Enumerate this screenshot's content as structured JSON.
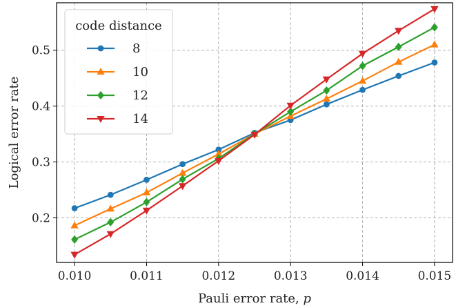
{
  "chart_data": {
    "type": "line",
    "xlabel": "Pauli error rate, ",
    "xlabel_var": "p",
    "ylabel": "Logical error rate",
    "xlim": [
      0.00975,
      0.01525
    ],
    "ylim": [
      0.12,
      0.585
    ],
    "xticks": [
      0.01,
      0.011,
      0.012,
      0.013,
      0.014,
      0.015
    ],
    "xtick_labels": [
      "0.010",
      "0.011",
      "0.012",
      "0.013",
      "0.014",
      "0.015"
    ],
    "yticks": [
      0.2,
      0.3,
      0.4,
      0.5
    ],
    "ytick_labels": [
      "0.2",
      "0.3",
      "0.4",
      "0.5"
    ],
    "grid": true,
    "legend": {
      "title": "code distance",
      "placement": "top-left"
    },
    "x": [
      0.01,
      0.0105,
      0.011,
      0.0115,
      0.012,
      0.0125,
      0.013,
      0.0135,
      0.014,
      0.0145,
      0.015
    ],
    "series": [
      {
        "name": "8",
        "color": "#1f77b4",
        "marker": "circle",
        "values": [
          0.217,
          0.241,
          0.268,
          0.296,
          0.322,
          0.352,
          0.375,
          0.403,
          0.429,
          0.454,
          0.478
        ]
      },
      {
        "name": "10",
        "color": "#ff7f0e",
        "marker": "triangle-up",
        "values": [
          0.186,
          0.216,
          0.245,
          0.28,
          0.314,
          0.35,
          0.382,
          0.413,
          0.445,
          0.479,
          0.51
        ]
      },
      {
        "name": "12",
        "color": "#2ca02c",
        "marker": "diamond",
        "values": [
          0.161,
          0.192,
          0.228,
          0.269,
          0.306,
          0.35,
          0.39,
          0.428,
          0.472,
          0.506,
          0.541
        ]
      },
      {
        "name": "14",
        "color": "#d62728",
        "marker": "triangle-down",
        "values": [
          0.134,
          0.171,
          0.213,
          0.257,
          0.302,
          0.349,
          0.401,
          0.448,
          0.494,
          0.535,
          0.574
        ]
      }
    ]
  }
}
